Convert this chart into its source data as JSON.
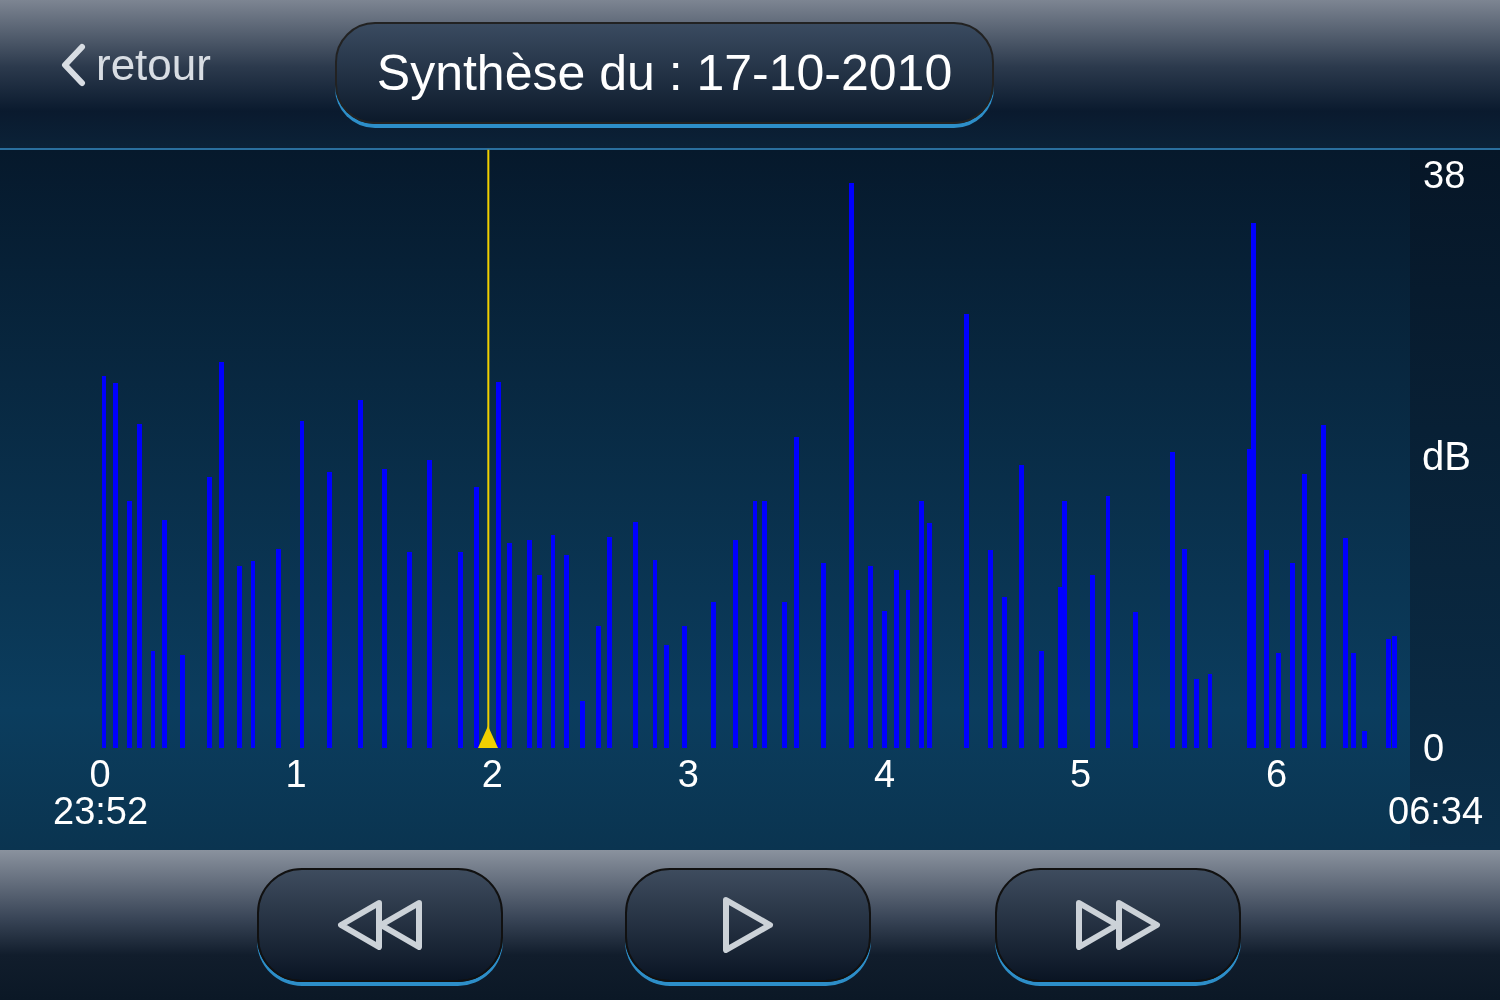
{
  "chart_data": {
    "type": "bar",
    "title": "Synthèse du : 17-10-2010",
    "ylabel": "dB",
    "annotations": [
      "retour",
      "23:52",
      "06:34"
    ],
    "x": [
      0.02,
      0.08,
      0.15,
      0.2,
      0.27,
      0.33,
      0.42,
      0.56,
      0.62,
      0.71,
      0.78,
      0.91,
      1.03,
      1.17,
      1.33,
      1.45,
      1.58,
      1.68,
      1.84,
      1.92,
      2.03,
      2.09,
      2.19,
      2.24,
      2.31,
      2.38,
      2.46,
      2.54,
      2.6,
      2.73,
      2.83,
      2.89,
      2.98,
      3.13,
      3.24,
      3.34,
      3.39,
      3.49,
      3.55,
      3.69,
      3.83,
      3.93,
      4.0,
      4.06,
      4.12,
      4.19,
      4.23,
      4.42,
      4.54,
      4.61,
      4.7,
      4.8,
      4.9,
      4.92,
      5.06,
      5.14,
      5.28,
      5.47,
      5.53,
      5.59,
      5.66,
      5.86,
      5.88,
      5.95,
      6.01,
      6.08,
      6.14,
      6.24,
      6.35,
      6.39,
      6.45,
      6.57,
      6.6
    ],
    "series": [
      {
        "color": "#0000ff",
        "values": [
          24.7,
          24.2,
          16.4,
          21.5,
          6.4,
          15.1,
          6.2,
          18,
          25.6,
          12.1,
          12.4,
          13.2,
          21.7,
          18.3,
          23.1,
          18.5,
          13,
          19.1,
          13,
          17.3,
          24.3,
          13.6,
          13.8,
          11.5,
          14.1,
          12.8,
          3.1,
          8.1,
          14,
          15,
          12.5,
          6.8,
          8.1,
          9.7,
          13.8,
          16.4,
          16.4,
          9.7,
          20.6,
          12.3,
          37.5,
          12.1,
          9.1,
          11.8,
          10.5,
          16.4,
          14.9,
          28.8,
          13.1,
          10,
          18.8,
          6.4,
          10.7,
          16.4,
          11.5,
          16.7,
          9,
          19.6,
          13.2,
          4.6,
          4.9,
          19.8,
          34.8,
          13.1,
          6.3,
          12.3,
          18.2,
          21.4,
          13.9,
          6.3,
          1.1,
          7.2,
          7.4
        ]
      }
    ],
    "xlim": [
      -0.5,
      6.68
    ],
    "xticks": [
      0,
      1,
      2,
      3,
      4,
      5,
      6
    ],
    "ylim": [
      0,
      38
    ],
    "yticks": [
      0,
      38
    ],
    "ref_lines": [
      {
        "axis": "x",
        "value": 1.98,
        "color": "#f0d000"
      }
    ]
  }
}
